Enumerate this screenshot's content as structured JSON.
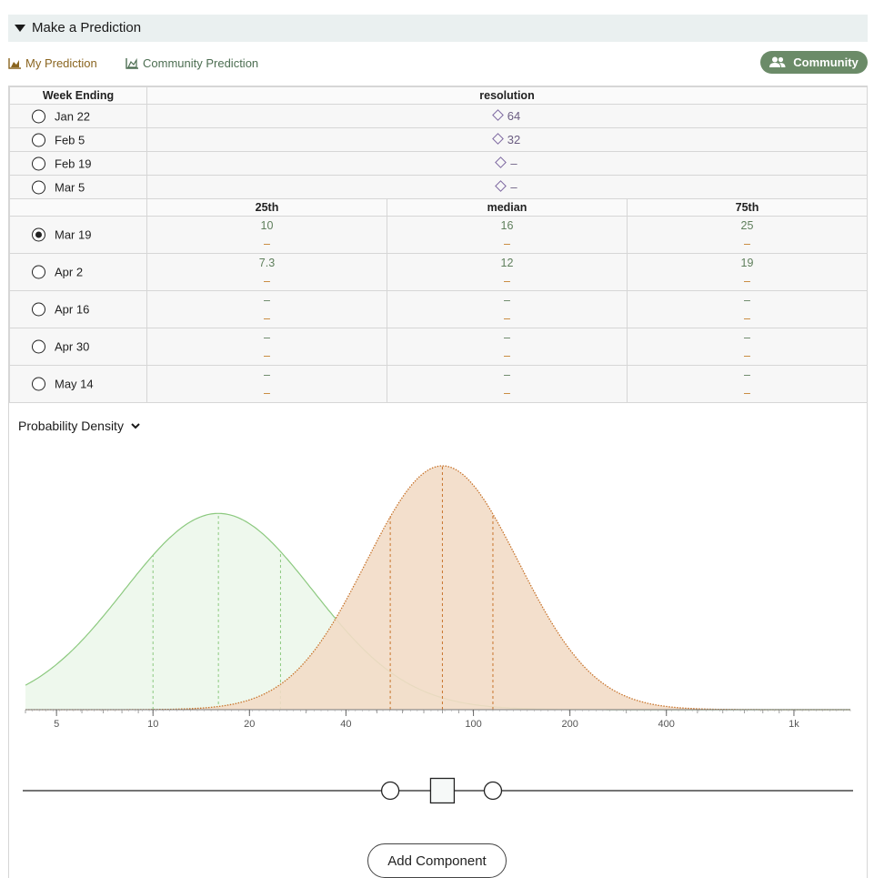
{
  "header": {
    "title": "Make a Prediction"
  },
  "legend": {
    "my_prediction": "My Prediction",
    "community_prediction": "Community Prediction"
  },
  "community_button": {
    "label": "Community"
  },
  "table": {
    "week_header": "Week Ending",
    "resolution_header": "resolution",
    "resolved_rows": [
      {
        "week": "Jan 22",
        "resolution": "64"
      },
      {
        "week": "Feb 5",
        "resolution": "32"
      },
      {
        "week": "Feb 19",
        "resolution": "–"
      },
      {
        "week": "Mar 5",
        "resolution": "–"
      }
    ],
    "quantile_headers": [
      "25th",
      "median",
      "75th"
    ],
    "open_rows": [
      {
        "week": "Mar 19",
        "selected": true,
        "community": [
          "10",
          "16",
          "25"
        ],
        "mine": [
          "–",
          "–",
          "–"
        ]
      },
      {
        "week": "Apr 2",
        "selected": false,
        "community": [
          "7.3",
          "12",
          "19"
        ],
        "mine": [
          "–",
          "–",
          "–"
        ]
      },
      {
        "week": "Apr 16",
        "selected": false,
        "community": [
          "–",
          "–",
          "–"
        ],
        "mine": [
          "–",
          "–",
          "–"
        ]
      },
      {
        "week": "Apr 30",
        "selected": false,
        "community": [
          "–",
          "–",
          "–"
        ],
        "mine": [
          "–",
          "–",
          "–"
        ]
      },
      {
        "week": "May 14",
        "selected": false,
        "community": [
          "–",
          "–",
          "–"
        ],
        "mine": [
          "–",
          "–",
          "–"
        ]
      }
    ]
  },
  "density": {
    "label": "Probability Density",
    "axis_ticks": [
      "5",
      "10",
      "20",
      "40",
      "100",
      "200",
      "400",
      "1k"
    ],
    "community_color": "#8cc97f",
    "mine_color": "#c8742c"
  },
  "chart_data": {
    "type": "area",
    "x_scale": "log",
    "xlim": [
      4,
      1500
    ],
    "series": [
      {
        "quantiles": {
          "q25": 10,
          "median": 16,
          "q75": 25
        }
      },
      {
        "quantiles": {
          "q25": 55,
          "median": 80,
          "q75": 115
        }
      }
    ]
  },
  "slider": {
    "q25": 55,
    "median": 80,
    "q75": 115
  },
  "add_component": {
    "label": "Add Component"
  }
}
